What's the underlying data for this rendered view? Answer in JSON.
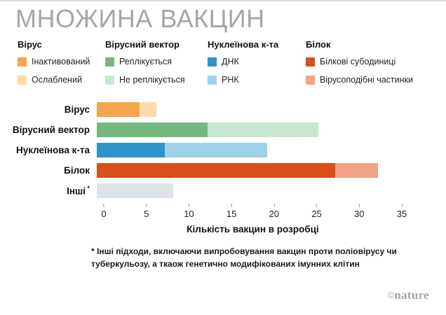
{
  "title": "МНОЖИНА ВАКЦИН",
  "legend": {
    "groups": [
      {
        "title": "Вірус",
        "items": [
          {
            "label": "Інактивований",
            "color": "#f5a54b"
          },
          {
            "label": "Ослаблений",
            "color": "#fbdba7"
          }
        ]
      },
      {
        "title": "Вірусний вектор",
        "items": [
          {
            "label": "Реплікується",
            "color": "#74b87e"
          },
          {
            "label": "Не реплікується",
            "color": "#c9e6cf"
          }
        ]
      },
      {
        "title": "Нуклеїнова к-та",
        "items": [
          {
            "label": "ДНК",
            "color": "#2d95cc"
          },
          {
            "label": "РНК",
            "color": "#9fd1e8"
          }
        ]
      },
      {
        "title": "Білок",
        "items": [
          {
            "label": "Білкові субодиниці",
            "color": "#d94f1a"
          },
          {
            "label": "Вірусоподібні частинки",
            "color": "#f1a383"
          }
        ]
      }
    ]
  },
  "chart_data": {
    "type": "bar",
    "orientation": "horizontal",
    "title": "МНОЖИНА ВАКЦИН",
    "xlabel": "Кількість вакцин в розробці",
    "xlim": [
      0,
      35
    ],
    "xticks": [
      0,
      5,
      10,
      15,
      20,
      25,
      30,
      35
    ],
    "grid": false,
    "categories": [
      "Вірус",
      "Вірусний вектор",
      "Нуклеїнова к-та",
      "Білок",
      "Інші *"
    ],
    "rows": [
      {
        "label": "Вірус",
        "asterisk": false,
        "total": 7,
        "segments": [
          {
            "name": "Інактивований",
            "value": 5,
            "color": "#f5a54b"
          },
          {
            "name": "Ослаблений",
            "value": 2,
            "color": "#fbdba7"
          }
        ]
      },
      {
        "label": "Вірусний вектор",
        "asterisk": false,
        "total": 26,
        "segments": [
          {
            "name": "Реплікується",
            "value": 13,
            "color": "#74b87e"
          },
          {
            "name": "Не реплікується",
            "value": 13,
            "color": "#c9e6cf"
          }
        ]
      },
      {
        "label": "Нуклеїнова к-та",
        "asterisk": false,
        "total": 20,
        "segments": [
          {
            "name": "ДНК",
            "value": 8,
            "color": "#2d95cc"
          },
          {
            "name": "РНК",
            "value": 12,
            "color": "#9fd1e8"
          }
        ]
      },
      {
        "label": "Білок",
        "asterisk": false,
        "total": 33,
        "segments": [
          {
            "name": "Білкові субодиниці",
            "value": 28,
            "color": "#d94f1a"
          },
          {
            "name": "Вірусоподібні частинки",
            "value": 5,
            "color": "#f1a383"
          }
        ]
      },
      {
        "label": "Інші",
        "asterisk": true,
        "total": 9,
        "segments": [
          {
            "name": "Інші",
            "value": 9,
            "color": "#dde3e9"
          }
        ]
      }
    ]
  },
  "footnote": "* Інші підходи, включаючи випробовування вакцин проти поліовірусу чи туберкульозу, а ткаож генетично модифікованих імунних клітин",
  "credit": {
    "symbol": "©",
    "brand": "nature"
  }
}
